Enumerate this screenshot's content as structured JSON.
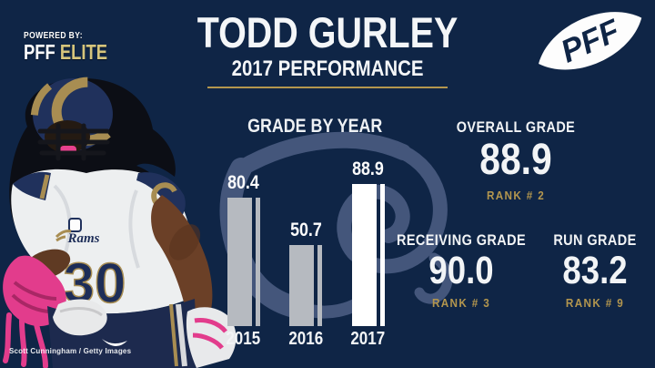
{
  "header": {
    "title": "TODD GURLEY",
    "subtitle": "2017 PERFORMANCE"
  },
  "powered_by": {
    "label": "POWERED BY:",
    "brand": "PFF",
    "product": "ELITE"
  },
  "logo": {
    "text": "PFF"
  },
  "chart_data": {
    "type": "bar",
    "title": "GRADE BY YEAR",
    "categories": [
      "2015",
      "2016",
      "2017"
    ],
    "values": [
      80.4,
      50.7,
      88.9
    ],
    "value_labels": [
      "80.4",
      "50.7",
      "88.9"
    ],
    "bar_colors": [
      "#b6bac0",
      "#b6bac0",
      "#ffffff"
    ],
    "ylim": [
      0,
      100
    ],
    "xlabel": "",
    "ylabel": "",
    "grid": false,
    "legend": false
  },
  "stats": {
    "overall": {
      "label": "OVERALL GRADE",
      "value": "88.9",
      "rank": "RANK # 2"
    },
    "receiving": {
      "label": "RECEIVING GRADE",
      "value": "90.0",
      "rank": "RANK # 3"
    },
    "run": {
      "label": "RUN GRADE",
      "value": "83.2",
      "rank": "RANK # 9"
    }
  },
  "player": {
    "jersey_number": "30",
    "jersey_wordmark": "Rams"
  },
  "photo_credit": "Scott Cunningham / Getty Images",
  "colors": {
    "background": "#0f2546",
    "gold": "#b3964e",
    "elite_gold": "#d6c57c",
    "bar_gray": "#b6bac0",
    "bar_white": "#ffffff",
    "watermark": "#47597e",
    "text": "#f4f6f8"
  }
}
